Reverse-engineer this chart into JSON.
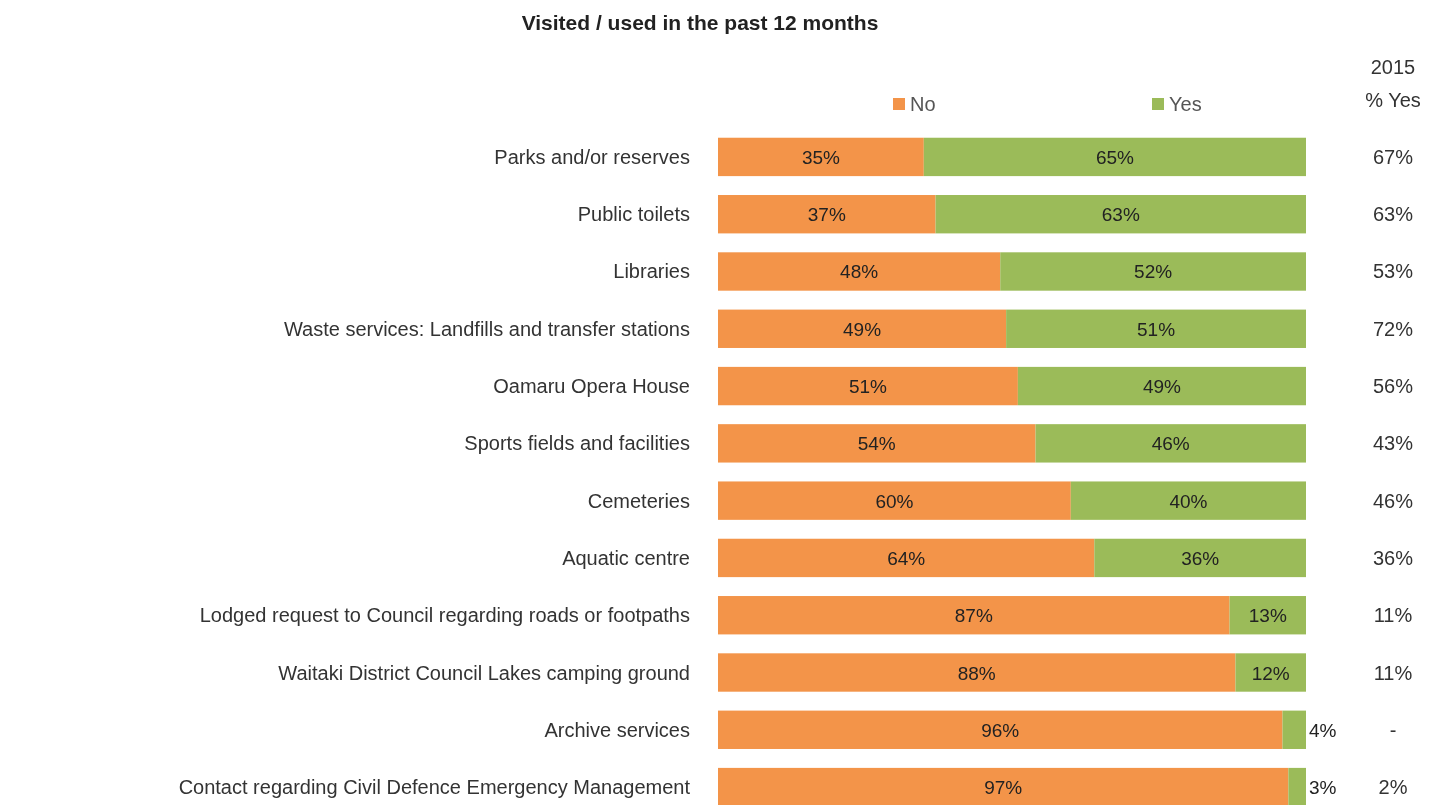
{
  "chart_data": {
    "type": "bar",
    "orientation": "horizontal",
    "stacked": true,
    "title": "Visited / used in the past 12 months",
    "categories": [
      "Parks and/or reserves",
      "Public toilets",
      "Libraries",
      "Waste services: Landfills and transfer stations",
      "Oamaru Opera House",
      "Sports fields and facilities",
      "Cemeteries",
      "Aquatic centre",
      "Lodged request to Council regarding roads or footpaths",
      "Waitaki District Council Lakes camping ground",
      "Archive services",
      "Contact regarding Civil Defence Emergency Management"
    ],
    "xlim": [
      0,
      100
    ],
    "tick_labels": "y",
    "legend": "top",
    "series": [
      {
        "name": "No",
        "color": "#f39449",
        "values": [
          35,
          37,
          48,
          49,
          51,
          54,
          60,
          64,
          87,
          88,
          96,
          97
        ],
        "value_labels": [
          "35%",
          "37%",
          "48%",
          "49%",
          "51%",
          "54%",
          "60%",
          "64%",
          "87%",
          "88%",
          "96%",
          "97%"
        ]
      },
      {
        "name": "Yes",
        "color": "#9bbb59",
        "values": [
          65,
          63,
          52,
          51,
          49,
          46,
          40,
          36,
          13,
          12,
          4,
          3
        ],
        "value_labels": [
          "65%",
          "63%",
          "52%",
          "51%",
          "49%",
          "46%",
          "40%",
          "36%",
          "13%",
          "12%",
          "4%",
          "3%"
        ]
      }
    ],
    "annotations": [
      "2015",
      "% Yes",
      "67%",
      "63%",
      "53%",
      "72%",
      "56%",
      "43%",
      "46%",
      "36%",
      "11%",
      "11%",
      "-",
      "2%"
    ]
  }
}
